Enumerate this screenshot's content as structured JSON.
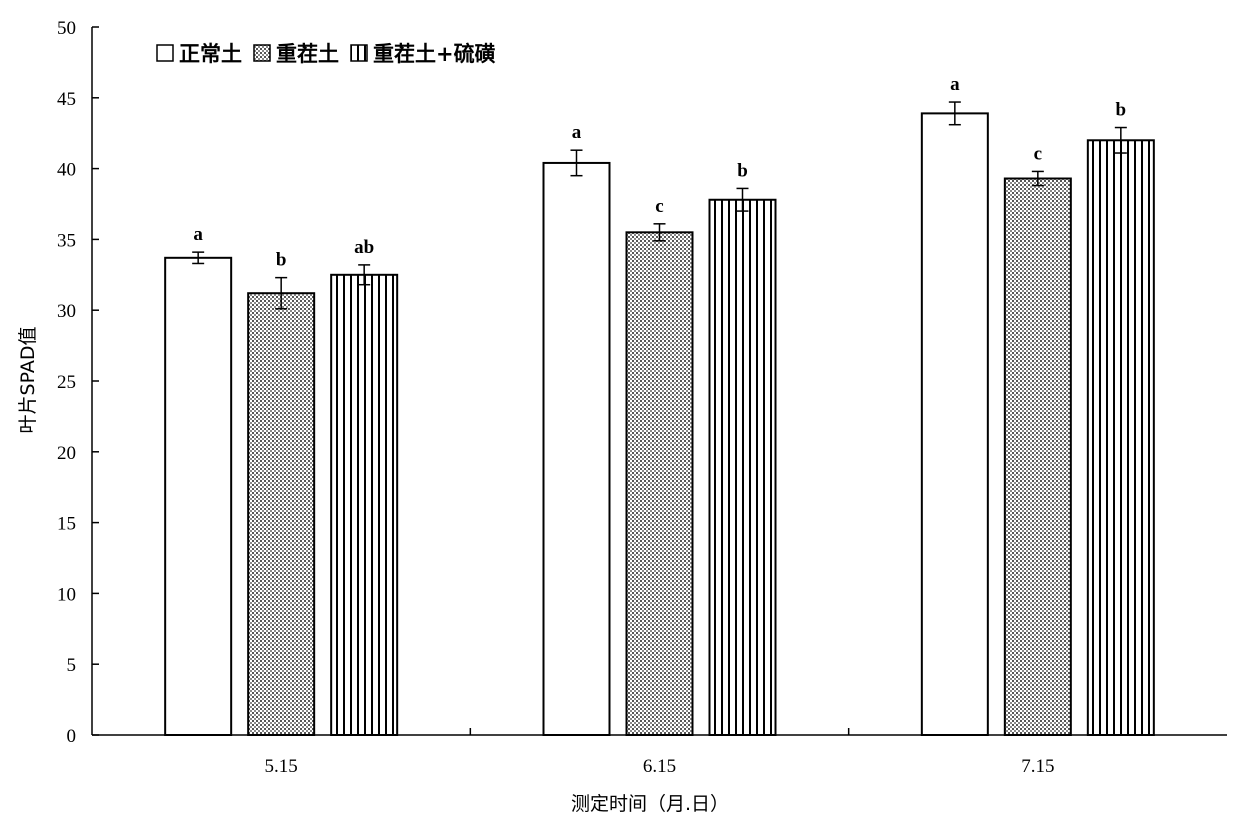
{
  "chart_data": {
    "type": "bar",
    "title": "",
    "xlabel": "测定时间（月.日）",
    "ylabel": "叶片SPAD值",
    "categories": [
      "5.15",
      "6.15",
      "7.15"
    ],
    "ylim": [
      0,
      50
    ],
    "yticks": [
      0,
      5,
      10,
      15,
      20,
      25,
      30,
      35,
      40,
      45,
      50
    ],
    "legend_position": "top-left",
    "grid": false,
    "series": [
      {
        "name": "正常土",
        "pattern": "blank",
        "values": [
          33.7,
          40.4,
          43.9
        ],
        "errors": [
          0.4,
          0.9,
          0.8
        ],
        "labels": [
          "a",
          "a",
          "a"
        ]
      },
      {
        "name": "重茬土",
        "pattern": "dots",
        "values": [
          31.2,
          35.5,
          39.3
        ],
        "errors": [
          1.1,
          0.6,
          0.5
        ],
        "labels": [
          "b",
          "c",
          "c"
        ]
      },
      {
        "name": "重茬土+硫磺",
        "pattern": "vertical-stripes",
        "values": [
          32.5,
          37.8,
          42.0
        ],
        "errors": [
          0.7,
          0.8,
          0.9
        ],
        "labels": [
          "ab",
          "b",
          "b"
        ]
      }
    ]
  }
}
